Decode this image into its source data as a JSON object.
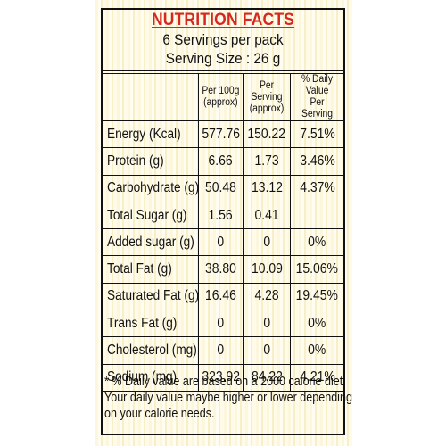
{
  "label": {
    "title": "NUTRITION FACTS",
    "servings_per_pack": "6 Servings per pack",
    "serving_size": "Serving Size : 26 g"
  },
  "table": {
    "headers": {
      "nutrient": "",
      "per100g": [
        "Per 100g",
        "(approx)"
      ],
      "per_serving": [
        "Per Serving",
        "(approx)"
      ],
      "daily_value": [
        "% Daily Value",
        "Per Serving"
      ]
    },
    "rows": [
      {
        "nutrient": "Energy (Kcal)",
        "per100g": "577.76",
        "per_serving": "150.22",
        "daily_value": "7.51%"
      },
      {
        "nutrient": "Protein (g)",
        "per100g": "6.66",
        "per_serving": "1.73",
        "daily_value": "3.46%"
      },
      {
        "nutrient": "Carbohydrate (g)",
        "per100g": "50.48",
        "per_serving": "13.12",
        "daily_value": "4.37%"
      },
      {
        "nutrient": "Total Sugar (g)",
        "per100g": "1.56",
        "per_serving": "0.41",
        "daily_value": ""
      },
      {
        "nutrient": "Added sugar (g)",
        "per100g": "0",
        "per_serving": "0",
        "daily_value": "0%"
      },
      {
        "nutrient": "Total Fat (g)",
        "per100g": "38.80",
        "per_serving": "10.09",
        "daily_value": "15.06%"
      },
      {
        "nutrient": "Saturated Fat (g)",
        "per100g": "16.46",
        "per_serving": "4.28",
        "daily_value": "19.45%"
      },
      {
        "nutrient": "Trans Fat (g)",
        "per100g": "0",
        "per_serving": "0",
        "daily_value": "0%"
      },
      {
        "nutrient": "Cholesterol (mg)",
        "per100g": "0",
        "per_serving": "0",
        "daily_value": "0%"
      },
      {
        "nutrient": "Sodium (mg)",
        "per100g": "323.92",
        "per_serving": "84.22",
        "daily_value": "4.21%"
      }
    ]
  },
  "footnote": [
    "* % Daily value are based on a 2000 calorie diet.",
    "Your daily value maybe higher or lower depending",
    "on your calorie needs."
  ],
  "colors": {
    "title": "#d6281f",
    "text": "#111111",
    "background": "#fbf6dc"
  }
}
